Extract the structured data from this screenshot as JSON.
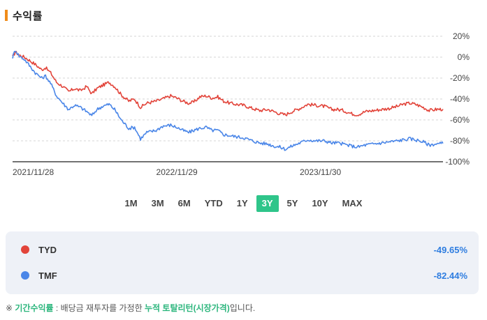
{
  "header": {
    "title": "수익률"
  },
  "periods": [
    {
      "label": "1M",
      "active": false
    },
    {
      "label": "3M",
      "active": false
    },
    {
      "label": "6M",
      "active": false
    },
    {
      "label": "YTD",
      "active": false
    },
    {
      "label": "1Y",
      "active": false
    },
    {
      "label": "3Y",
      "active": true
    },
    {
      "label": "5Y",
      "active": false
    },
    {
      "label": "10Y",
      "active": false
    },
    {
      "label": "MAX",
      "active": false
    }
  ],
  "legend": [
    {
      "name": "TYD",
      "value": "-49.65%",
      "color": "#e2443a"
    },
    {
      "name": "TMF",
      "value": "-82.44%",
      "color": "#4a86e8"
    }
  ],
  "footnote": {
    "prefix": "※ ",
    "term1": "기간수익률",
    "mid": " : 배당금 재투자를 가정한 ",
    "term2": "누적 토탈리턴(시장가격)",
    "suffix": "입니다."
  },
  "chart_data": {
    "type": "line",
    "x_tick_labels": [
      "2021/11/28",
      "2022/11/29",
      "2023/11/30"
    ],
    "x_ticks": [
      "2021-11-28",
      "2022-11-29",
      "2023-11-30"
    ],
    "xlim": [
      "2021-11-28",
      "2024-11-29"
    ],
    "y_tick_labels": [
      "20%",
      "0%",
      "-20%",
      "-40%",
      "-60%",
      "-80%",
      "-100%"
    ],
    "y_ticks": [
      20,
      0,
      -20,
      -40,
      -60,
      -80,
      -100
    ],
    "ylim": [
      -100,
      20
    ],
    "grid": "horizontal-dashed",
    "series": [
      {
        "name": "TYD",
        "color": "#e2443a",
        "points": [
          [
            "2021-11-28",
            0
          ],
          [
            "2021-12-05",
            5
          ],
          [
            "2021-12-15",
            2
          ],
          [
            "2021-12-28",
            0
          ],
          [
            "2022-01-10",
            -3
          ],
          [
            "2022-01-25",
            -7
          ],
          [
            "2022-02-10",
            -12
          ],
          [
            "2022-02-20",
            -10
          ],
          [
            "2022-03-05",
            -15
          ],
          [
            "2022-03-20",
            -24
          ],
          [
            "2022-04-05",
            -28
          ],
          [
            "2022-04-20",
            -33
          ],
          [
            "2022-05-05",
            -30
          ],
          [
            "2022-05-20",
            -32
          ],
          [
            "2022-06-05",
            -28
          ],
          [
            "2022-06-18",
            -35
          ],
          [
            "2022-07-01",
            -30
          ],
          [
            "2022-07-15",
            -27
          ],
          [
            "2022-08-01",
            -24
          ],
          [
            "2022-08-15",
            -28
          ],
          [
            "2022-09-01",
            -36
          ],
          [
            "2022-09-20",
            -42
          ],
          [
            "2022-10-05",
            -40
          ],
          [
            "2022-10-20",
            -48
          ],
          [
            "2022-11-05",
            -44
          ],
          [
            "2022-11-29",
            -42
          ],
          [
            "2022-12-15",
            -40
          ],
          [
            "2023-01-05",
            -37
          ],
          [
            "2023-01-20",
            -39
          ],
          [
            "2023-02-05",
            -42
          ],
          [
            "2023-02-20",
            -44
          ],
          [
            "2023-03-05",
            -43
          ],
          [
            "2023-03-20",
            -38
          ],
          [
            "2023-04-05",
            -37
          ],
          [
            "2023-04-20",
            -39
          ],
          [
            "2023-05-05",
            -38
          ],
          [
            "2023-05-20",
            -42
          ],
          [
            "2023-06-05",
            -44
          ],
          [
            "2023-06-20",
            -45
          ],
          [
            "2023-07-10",
            -46
          ],
          [
            "2023-08-01",
            -49
          ],
          [
            "2023-08-20",
            -51
          ],
          [
            "2023-09-10",
            -50
          ],
          [
            "2023-09-25",
            -52
          ],
          [
            "2023-10-10",
            -54
          ],
          [
            "2023-10-25",
            -55
          ],
          [
            "2023-11-10",
            -52
          ],
          [
            "2023-11-30",
            -49
          ],
          [
            "2023-12-20",
            -45
          ],
          [
            "2024-01-10",
            -46
          ],
          [
            "2024-02-01",
            -47
          ],
          [
            "2024-02-20",
            -50
          ],
          [
            "2024-03-05",
            -50
          ],
          [
            "2024-03-20",
            -51
          ],
          [
            "2024-04-10",
            -54
          ],
          [
            "2024-04-25",
            -55
          ],
          [
            "2024-05-15",
            -52
          ],
          [
            "2024-06-05",
            -51
          ],
          [
            "2024-06-25",
            -50
          ],
          [
            "2024-07-15",
            -49
          ],
          [
            "2024-08-05",
            -47
          ],
          [
            "2024-08-20",
            -45
          ],
          [
            "2024-09-05",
            -44
          ],
          [
            "2024-09-20",
            -45
          ],
          [
            "2024-10-10",
            -48
          ],
          [
            "2024-10-25",
            -51
          ],
          [
            "2024-11-10",
            -50
          ],
          [
            "2024-11-29",
            -49.65
          ]
        ]
      },
      {
        "name": "TMF",
        "color": "#4a86e8",
        "points": [
          [
            "2021-11-28",
            0
          ],
          [
            "2021-12-05",
            7
          ],
          [
            "2021-12-15",
            1
          ],
          [
            "2021-12-28",
            -2
          ],
          [
            "2022-01-10",
            -8
          ],
          [
            "2022-01-25",
            -15
          ],
          [
            "2022-02-10",
            -20
          ],
          [
            "2022-02-20",
            -18
          ],
          [
            "2022-03-05",
            -25
          ],
          [
            "2022-03-20",
            -37
          ],
          [
            "2022-04-05",
            -44
          ],
          [
            "2022-04-20",
            -50
          ],
          [
            "2022-05-05",
            -46
          ],
          [
            "2022-05-20",
            -48
          ],
          [
            "2022-06-05",
            -52
          ],
          [
            "2022-06-18",
            -56
          ],
          [
            "2022-07-01",
            -50
          ],
          [
            "2022-07-15",
            -47
          ],
          [
            "2022-08-01",
            -45
          ],
          [
            "2022-08-15",
            -50
          ],
          [
            "2022-09-01",
            -60
          ],
          [
            "2022-09-20",
            -68
          ],
          [
            "2022-10-05",
            -67
          ],
          [
            "2022-10-20",
            -78
          ],
          [
            "2022-11-05",
            -72
          ],
          [
            "2022-11-29",
            -70
          ],
          [
            "2022-12-15",
            -66
          ],
          [
            "2023-01-05",
            -65
          ],
          [
            "2023-01-20",
            -67
          ],
          [
            "2023-02-05",
            -70
          ],
          [
            "2023-02-20",
            -72
          ],
          [
            "2023-03-05",
            -70
          ],
          [
            "2023-03-20",
            -68
          ],
          [
            "2023-04-05",
            -67
          ],
          [
            "2023-04-20",
            -70
          ],
          [
            "2023-05-05",
            -70
          ],
          [
            "2023-05-20",
            -74
          ],
          [
            "2023-06-05",
            -75
          ],
          [
            "2023-06-20",
            -76
          ],
          [
            "2023-07-10",
            -77
          ],
          [
            "2023-08-01",
            -80
          ],
          [
            "2023-08-20",
            -82
          ],
          [
            "2023-09-10",
            -83
          ],
          [
            "2023-09-25",
            -85
          ],
          [
            "2023-10-10",
            -86
          ],
          [
            "2023-10-25",
            -88
          ],
          [
            "2023-11-10",
            -85
          ],
          [
            "2023-11-30",
            -82
          ],
          [
            "2023-12-20",
            -79
          ],
          [
            "2024-01-10",
            -80
          ],
          [
            "2024-02-01",
            -80
          ],
          [
            "2024-02-20",
            -82
          ],
          [
            "2024-03-05",
            -82
          ],
          [
            "2024-03-20",
            -83
          ],
          [
            "2024-04-10",
            -85
          ],
          [
            "2024-04-25",
            -86
          ],
          [
            "2024-05-15",
            -84
          ],
          [
            "2024-06-05",
            -83
          ],
          [
            "2024-06-25",
            -82
          ],
          [
            "2024-07-15",
            -81
          ],
          [
            "2024-08-05",
            -80
          ],
          [
            "2024-08-20",
            -79
          ],
          [
            "2024-09-05",
            -78
          ],
          [
            "2024-09-20",
            -79
          ],
          [
            "2024-10-10",
            -81
          ],
          [
            "2024-10-25",
            -84
          ],
          [
            "2024-11-10",
            -83
          ],
          [
            "2024-11-29",
            -82.44
          ]
        ]
      }
    ]
  }
}
